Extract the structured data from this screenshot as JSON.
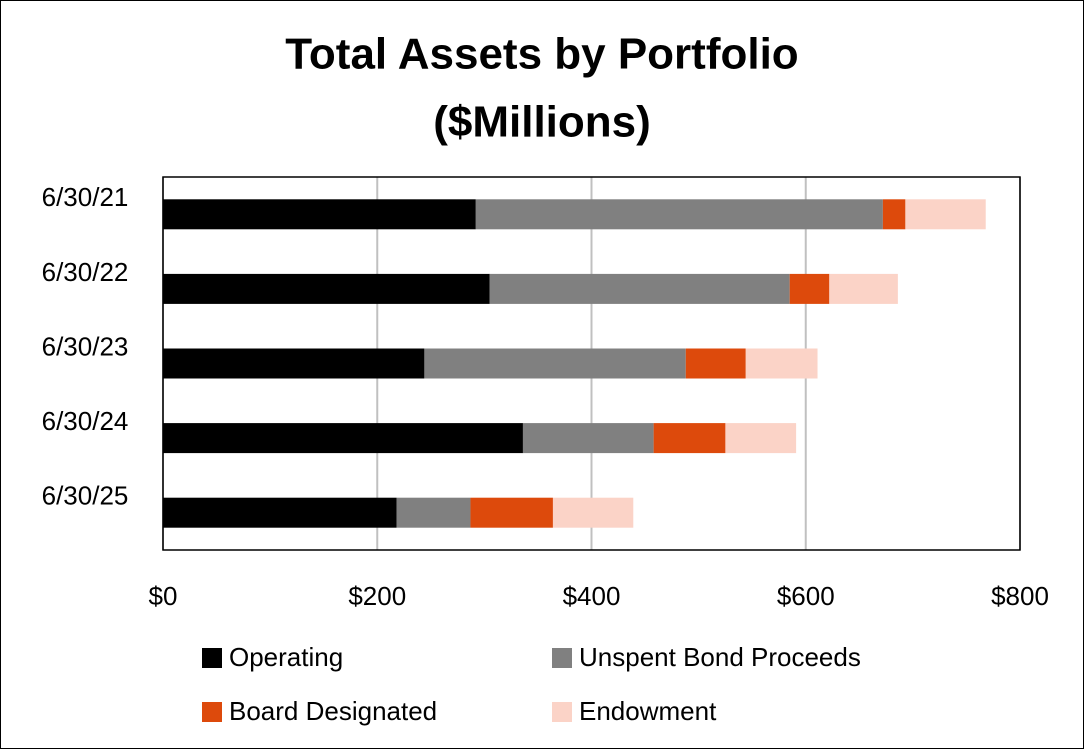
{
  "chart_data": {
    "type": "stacked_barh",
    "title": [
      "Total Assets by Portfolio",
      "($Millions)"
    ],
    "categories": [
      "6/30/21",
      "6/30/22",
      "6/30/23",
      "6/30/24",
      "6/30/25"
    ],
    "series": [
      {
        "name": "Operating",
        "color": "#000000",
        "values": [
          292,
          305,
          244,
          336,
          218
        ]
      },
      {
        "name": "Unspent Bond Proceeds",
        "color": "#808080",
        "values": [
          380,
          280,
          244,
          122,
          69
        ]
      },
      {
        "name": "Board Designated",
        "color": "#dd4a0c",
        "values": [
          21,
          37,
          56,
          67,
          77
        ]
      },
      {
        "name": "Endowment",
        "color": "#fbd3c7",
        "values": [
          75,
          64,
          67,
          66,
          75
        ]
      }
    ],
    "xlim": [
      0,
      800
    ],
    "xticks": [
      {
        "value": 0,
        "label": "$0"
      },
      {
        "value": 200,
        "label": "$200"
      },
      {
        "value": 400,
        "label": "$400"
      },
      {
        "value": 600,
        "label": "$600"
      },
      {
        "value": 800,
        "label": "$800"
      }
    ],
    "grid": true,
    "legend": "bottom"
  }
}
